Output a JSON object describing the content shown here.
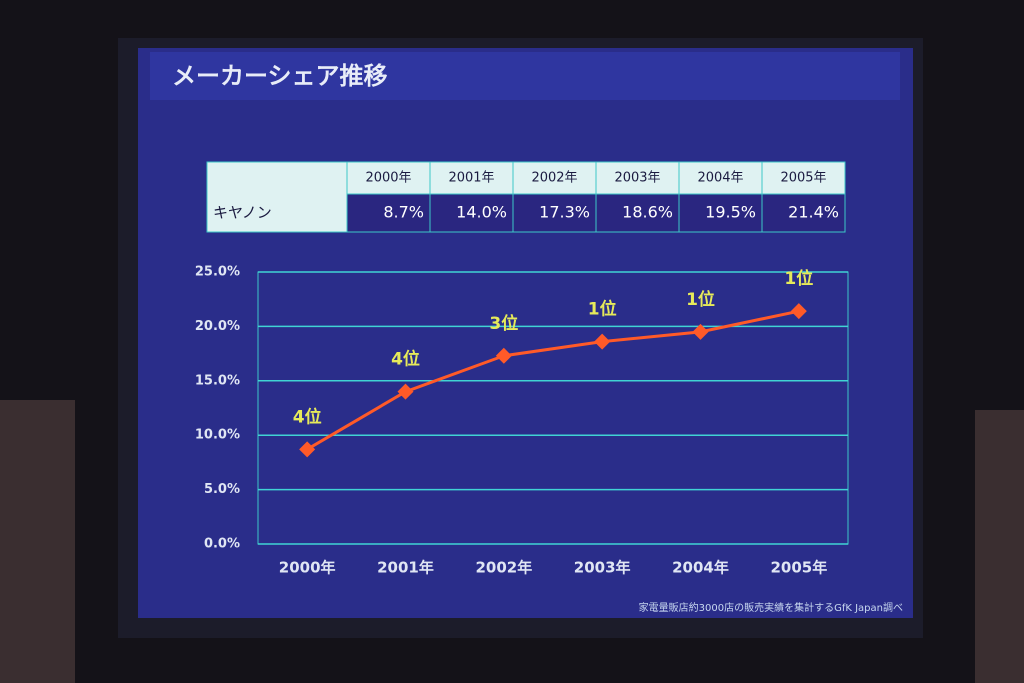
{
  "title": "メーカーシェア推移",
  "table": {
    "row_label": "キヤノン",
    "header": [
      "2000年",
      "2001年",
      "2002年",
      "2003年",
      "2004年",
      "2005年"
    ],
    "cells": [
      "8.7%",
      "14.0%",
      "17.3%",
      "18.6%",
      "19.5%",
      "21.4%"
    ]
  },
  "chart_data": {
    "type": "line",
    "categories": [
      "2000年",
      "2001年",
      "2002年",
      "2003年",
      "2004年",
      "2005年"
    ],
    "values": [
      8.7,
      14.0,
      17.3,
      18.6,
      19.5,
      21.4
    ],
    "annotations": [
      "4位",
      "4位",
      "3位",
      "1位",
      "1位",
      "1位"
    ],
    "color": "#ff5a28",
    "ylim": [
      0,
      25
    ],
    "yticks": [
      {
        "value": 0,
        "label": "0.0%"
      },
      {
        "value": 5,
        "label": "5.0%"
      },
      {
        "value": 10,
        "label": "10.0%"
      },
      {
        "value": 15,
        "label": "15.0%"
      },
      {
        "value": 20,
        "label": "20.0%"
      },
      {
        "value": 25,
        "label": "25.0%"
      }
    ],
    "grid": true
  },
  "footnote": "家電量販店約3000店の販売実績を集計するGfK Japan調べ"
}
